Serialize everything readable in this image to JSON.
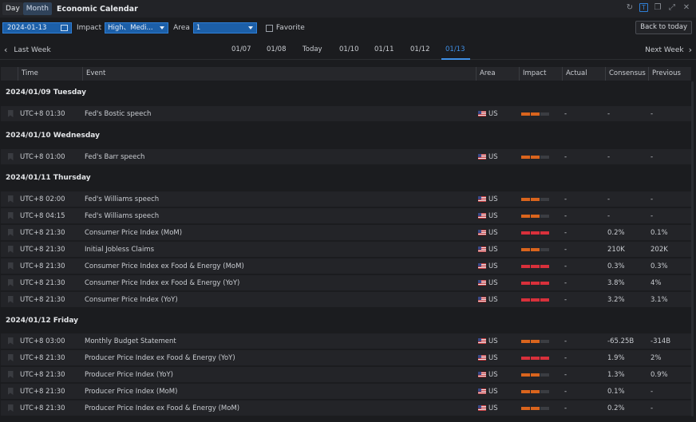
{
  "titlebar": {
    "day_label": "Day",
    "month_label": "Month",
    "title": "Economic Calendar",
    "icons": [
      "refresh-icon",
      "t-icon",
      "restore-icon",
      "expand-icon",
      "close-icon"
    ]
  },
  "filters": {
    "date": "2024-01-13",
    "impact_label": "Impact",
    "impact_value": "High、Medi...",
    "area_label": "Area",
    "area_value": "1",
    "favorite_label": "Favorite",
    "back_to_today": "Back to today"
  },
  "weeknav": {
    "prev": "Last Week",
    "next": "Next Week",
    "tabs": [
      "01/07",
      "01/08",
      "Today",
      "01/10",
      "01/11",
      "01/12",
      "01/13"
    ],
    "selected": "01/13"
  },
  "table": {
    "headers": [
      "Time",
      "Event",
      "Area",
      "Impact",
      "Actual",
      "Consensus",
      "Previous"
    ],
    "groups": [
      {
        "date": "2024/01/09 Tuesday",
        "rows": [
          {
            "time": "UTC+8 01:30",
            "event": "Fed's Bostic speech",
            "area": "US",
            "impact": "medium",
            "actual": "-",
            "consensus": "-",
            "previous": "-"
          }
        ]
      },
      {
        "date": "2024/01/10 Wednesday",
        "rows": [
          {
            "time": "UTC+8 01:00",
            "event": "Fed's Barr speech",
            "area": "US",
            "impact": "medium",
            "actual": "-",
            "consensus": "-",
            "previous": "-"
          }
        ]
      },
      {
        "date": "2024/01/11 Thursday",
        "rows": [
          {
            "time": "UTC+8 02:00",
            "event": "Fed's Williams speech",
            "area": "US",
            "impact": "medium",
            "actual": "-",
            "consensus": "-",
            "previous": "-"
          },
          {
            "time": "UTC+8 04:15",
            "event": "Fed's Williams speech",
            "area": "US",
            "impact": "medium",
            "actual": "-",
            "consensus": "-",
            "previous": "-"
          },
          {
            "time": "UTC+8 21:30",
            "event": "Consumer Price Index (MoM)",
            "area": "US",
            "impact": "high",
            "actual": "-",
            "consensus": "0.2%",
            "previous": "0.1%"
          },
          {
            "time": "UTC+8 21:30",
            "event": "Initial Jobless Claims",
            "area": "US",
            "impact": "medium",
            "actual": "-",
            "consensus": "210K",
            "previous": "202K"
          },
          {
            "time": "UTC+8 21:30",
            "event": "Consumer Price Index ex Food & Energy (MoM)",
            "area": "US",
            "impact": "high",
            "actual": "-",
            "consensus": "0.3%",
            "previous": "0.3%"
          },
          {
            "time": "UTC+8 21:30",
            "event": "Consumer Price Index ex Food & Energy (YoY)",
            "area": "US",
            "impact": "high",
            "actual": "-",
            "consensus": "3.8%",
            "previous": "4%"
          },
          {
            "time": "UTC+8 21:30",
            "event": "Consumer Price Index (YoY)",
            "area": "US",
            "impact": "high",
            "actual": "-",
            "consensus": "3.2%",
            "previous": "3.1%"
          }
        ]
      },
      {
        "date": "2024/01/12 Friday",
        "rows": [
          {
            "time": "UTC+8 03:00",
            "event": "Monthly Budget Statement",
            "area": "US",
            "impact": "medium",
            "actual": "-",
            "consensus": "-65.25B",
            "previous": "-314B"
          },
          {
            "time": "UTC+8 21:30",
            "event": "Producer Price Index ex Food & Energy (YoY)",
            "area": "US",
            "impact": "high",
            "actual": "-",
            "consensus": "1.9%",
            "previous": "2%"
          },
          {
            "time": "UTC+8 21:30",
            "event": "Producer Price Index (YoY)",
            "area": "US",
            "impact": "medium",
            "actual": "-",
            "consensus": "1.3%",
            "previous": "0.9%"
          },
          {
            "time": "UTC+8 21:30",
            "event": "Producer Price Index (MoM)",
            "area": "US",
            "impact": "medium",
            "actual": "-",
            "consensus": "0.1%",
            "previous": "-"
          },
          {
            "time": "UTC+8 21:30",
            "event": "Producer Price Index ex Food & Energy (MoM)",
            "area": "US",
            "impact": "medium",
            "actual": "-",
            "consensus": "0.2%",
            "previous": "-"
          }
        ]
      }
    ]
  },
  "colors": {
    "accent": "#3f8fe6",
    "impact_medium": "#d9641d",
    "impact_high": "#d8303b"
  }
}
